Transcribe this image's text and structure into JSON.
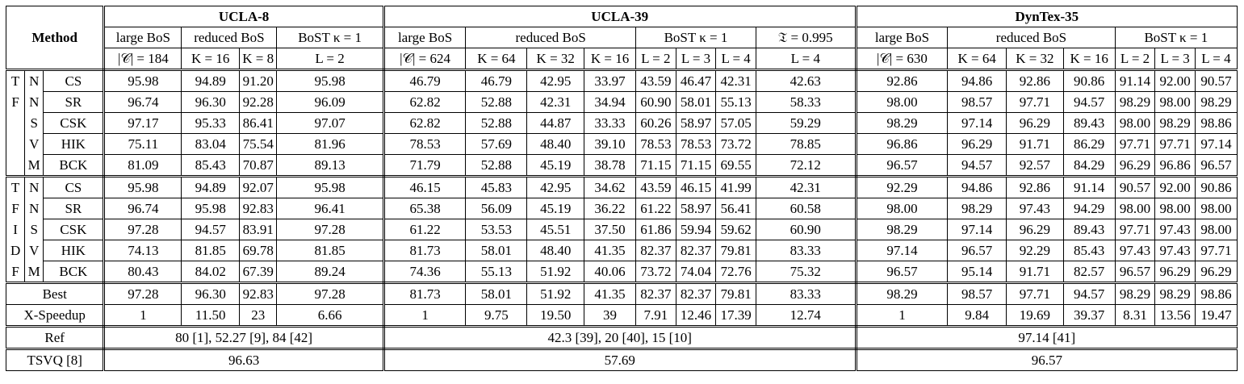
{
  "header": {
    "method": "Method",
    "groups": [
      "UCLA-8",
      "UCLA-39",
      "DynTex-35"
    ],
    "sub": {
      "large": "large BoS",
      "reduced": "reduced BoS",
      "bost": "BoST κ = 1",
      "tfrak": "𝔗 = 0.995"
    },
    "params": {
      "ucla8": [
        "|𝒞| = 184",
        "K = 16",
        "K = 8",
        "L = 2"
      ],
      "ucla39": [
        "|𝒞| = 624",
        "K = 64",
        "K = 32",
        "K = 16",
        "L = 2",
        "L = 3",
        "L = 4",
        "L = 4"
      ],
      "dyntex": [
        "|𝒞| = 630",
        "K = 64",
        "K = 32",
        "K = 16",
        "L = 2",
        "L = 3",
        "L = 4"
      ]
    }
  },
  "side": {
    "tfs": [
      "T",
      "F",
      "",
      "",
      ""
    ],
    "tfidf": [
      "T",
      "F",
      "I",
      "D",
      "F"
    ],
    "nnsvm": [
      "N",
      "N",
      "S",
      "V",
      "M"
    ]
  },
  "rows": [
    {
      "kernel": "CS",
      "vals": [
        "95.98",
        "94.89",
        "91.20",
        "95.98",
        "46.79",
        "46.79",
        "42.95",
        "33.97",
        "43.59",
        "46.47",
        "42.31",
        "42.63",
        "92.86",
        "94.86",
        "92.86",
        "90.86",
        "91.14",
        "92.00",
        "90.57"
      ]
    },
    {
      "kernel": "SR",
      "vals": [
        "96.74",
        "96.30",
        "92.28",
        "96.09",
        "62.82",
        "52.88",
        "42.31",
        "34.94",
        "60.90",
        "58.01",
        "55.13",
        "58.33",
        "98.00",
        "98.57",
        "97.71",
        "94.57",
        "98.29",
        "98.00",
        "98.29"
      ]
    },
    {
      "kernel": "CSK",
      "vals": [
        "97.17",
        "95.33",
        "86.41",
        "97.07",
        "62.82",
        "52.88",
        "44.87",
        "33.33",
        "60.26",
        "58.97",
        "57.05",
        "59.29",
        "98.29",
        "97.14",
        "96.29",
        "89.43",
        "98.00",
        "98.29",
        "98.86"
      ]
    },
    {
      "kernel": "HIK",
      "vals": [
        "75.11",
        "83.04",
        "75.54",
        "81.96",
        "78.53",
        "57.69",
        "48.40",
        "39.10",
        "78.53",
        "78.53",
        "73.72",
        "78.85",
        "96.86",
        "96.29",
        "91.71",
        "86.29",
        "97.71",
        "97.71",
        "97.14"
      ]
    },
    {
      "kernel": "BCK",
      "vals": [
        "81.09",
        "85.43",
        "70.87",
        "89.13",
        "71.79",
        "52.88",
        "45.19",
        "38.78",
        "71.15",
        "71.15",
        "69.55",
        "72.12",
        "96.57",
        "94.57",
        "92.57",
        "84.29",
        "96.29",
        "96.86",
        "96.57"
      ]
    },
    {
      "kernel": "CS",
      "vals": [
        "95.98",
        "94.89",
        "92.07",
        "95.98",
        "46.15",
        "45.83",
        "42.95",
        "34.62",
        "43.59",
        "46.15",
        "41.99",
        "42.31",
        "92.29",
        "94.86",
        "92.86",
        "91.14",
        "90.57",
        "92.00",
        "90.86"
      ]
    },
    {
      "kernel": "SR",
      "vals": [
        "96.74",
        "95.98",
        "92.83",
        "96.41",
        "65.38",
        "56.09",
        "45.19",
        "36.22",
        "61.22",
        "58.97",
        "56.41",
        "60.58",
        "98.00",
        "98.29",
        "97.43",
        "94.29",
        "98.00",
        "98.00",
        "98.00"
      ]
    },
    {
      "kernel": "CSK",
      "vals": [
        "97.28",
        "94.57",
        "83.91",
        "97.28",
        "61.22",
        "53.53",
        "45.51",
        "37.50",
        "61.86",
        "59.94",
        "59.62",
        "60.90",
        "98.29",
        "97.14",
        "96.29",
        "89.43",
        "97.71",
        "97.43",
        "98.00"
      ]
    },
    {
      "kernel": "HIK",
      "vals": [
        "74.13",
        "81.85",
        "69.78",
        "81.85",
        "81.73",
        "58.01",
        "48.40",
        "41.35",
        "82.37",
        "82.37",
        "79.81",
        "83.33",
        "97.14",
        "96.57",
        "92.29",
        "85.43",
        "97.43",
        "97.43",
        "97.71"
      ]
    },
    {
      "kernel": "BCK",
      "vals": [
        "80.43",
        "84.02",
        "67.39",
        "89.24",
        "74.36",
        "55.13",
        "51.92",
        "40.06",
        "73.72",
        "74.04",
        "72.76",
        "75.32",
        "96.57",
        "95.14",
        "91.71",
        "82.57",
        "96.57",
        "96.29",
        "96.29"
      ]
    }
  ],
  "best": {
    "label": "Best",
    "vals": [
      "97.28",
      "96.30",
      "92.83",
      "97.28",
      "81.73",
      "58.01",
      "51.92",
      "41.35",
      "82.37",
      "82.37",
      "79.81",
      "83.33",
      "98.29",
      "98.57",
      "97.71",
      "94.57",
      "98.29",
      "98.29",
      "98.86"
    ]
  },
  "speedup": {
    "label": "X-Speedup",
    "vals": [
      "1",
      "11.50",
      "23",
      "6.66",
      "1",
      "9.75",
      "19.50",
      "39",
      "7.91",
      "12.46",
      "17.39",
      "12.74",
      "1",
      "9.84",
      "19.69",
      "39.37",
      "8.31",
      "13.56",
      "19.47"
    ]
  },
  "ref": {
    "label": "Ref",
    "ucla8": "80 [1], 52.27 [9], 84 [42]",
    "ucla39": "42.3 [39], 20 [40], 15 [10]",
    "dyntex": "97.14 [41]"
  },
  "tsvq": {
    "label": "TSVQ [8]",
    "ucla8": "96.63",
    "ucla39": "57.69",
    "dyntex": "96.57"
  }
}
